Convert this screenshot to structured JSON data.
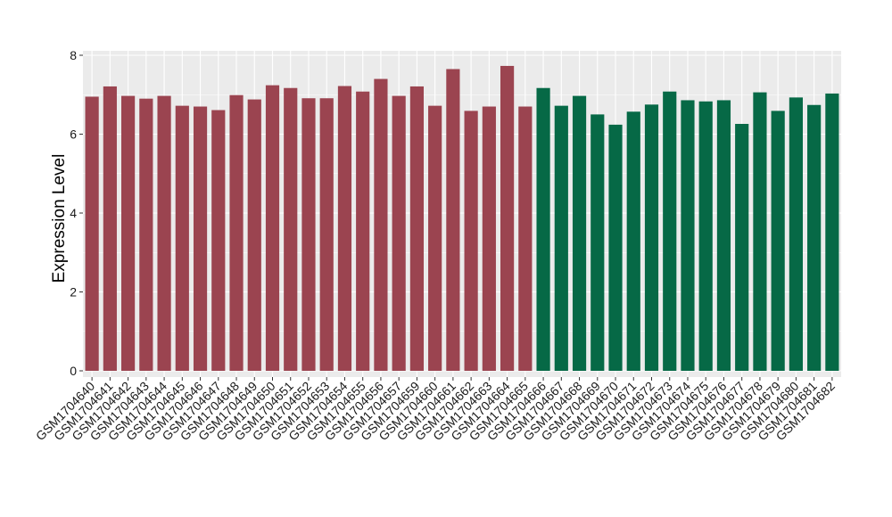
{
  "chart_data": {
    "type": "bar",
    "title": "",
    "xlabel": "",
    "ylabel": "Expression Level",
    "ylim": [
      0,
      8.1
    ],
    "yticks": [
      0,
      2,
      4,
      6,
      8
    ],
    "grid": true,
    "categories": [
      "GSM1704640",
      "GSM1704641",
      "GSM1704642",
      "GSM1704643",
      "GSM1704644",
      "GSM1704645",
      "GSM1704646",
      "GSM1704647",
      "GSM1704648",
      "GSM1704649",
      "GSM1704650",
      "GSM1704651",
      "GSM1704652",
      "GSM1704653",
      "GSM1704654",
      "GSM1704655",
      "GSM1704656",
      "GSM1704657",
      "GSM1704659",
      "GSM1704660",
      "GSM1704661",
      "GSM1704662",
      "GSM1704663",
      "GSM1704664",
      "GSM1704665",
      "GSM1704666",
      "GSM1704667",
      "GSM1704668",
      "GSM1704669",
      "GSM1704670",
      "GSM1704671",
      "GSM1704672",
      "GSM1704673",
      "GSM1704674",
      "GSM1704675",
      "GSM1704676",
      "GSM1704677",
      "GSM1704678",
      "GSM1704679",
      "GSM1704680",
      "GSM1704681",
      "GSM1704682"
    ],
    "values": [
      6.95,
      7.21,
      6.97,
      6.9,
      6.97,
      6.72,
      6.7,
      6.61,
      6.99,
      6.88,
      7.24,
      7.17,
      6.91,
      6.91,
      7.22,
      7.08,
      7.4,
      6.97,
      7.21,
      6.72,
      7.65,
      6.59,
      6.7,
      7.73,
      6.7,
      7.17,
      6.72,
      6.97,
      6.5,
      6.24,
      6.57,
      6.75,
      7.08,
      6.86,
      6.83,
      6.86,
      6.26,
      7.06,
      6.59,
      6.93,
      6.74,
      7.03
    ],
    "groups": [
      {
        "color": "#9b4450",
        "count": 25
      },
      {
        "color": "#066946",
        "count": 17
      }
    ],
    "panel_background": "#ebebeb",
    "grid_color": "#ffffff"
  }
}
